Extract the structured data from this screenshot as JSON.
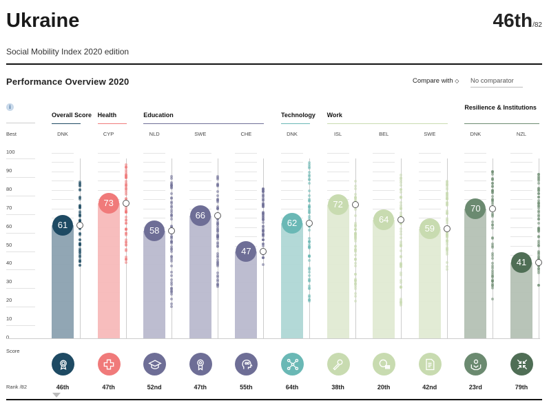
{
  "header": {
    "title": "Ukraine",
    "rank": "46th",
    "rank_of": "/82",
    "subtitle": "Social Mobility Index 2020 edition"
  },
  "section": {
    "title": "Performance Overview 2020",
    "compare_label": "Compare with",
    "compare_icon": "diamond-icon",
    "compare_value": "No comparator"
  },
  "axis": {
    "best_label": "Best",
    "ticks": [
      "100",
      "90",
      "80",
      "70",
      "60",
      "50",
      "40",
      "30",
      "20",
      "10",
      "0"
    ],
    "score_label": "Score",
    "rank_label": "Rank /82"
  },
  "groups": [
    {
      "label": "Overall Score",
      "cols": [
        0
      ],
      "color": "#1e4a63"
    },
    {
      "label": "Health",
      "cols": [
        1
      ],
      "color": "#f07a7a"
    },
    {
      "label": "Education",
      "cols": [
        2,
        3,
        4
      ],
      "color": "#6e6e96"
    },
    {
      "label": "Technology",
      "cols": [
        5
      ],
      "color": "#6ab8b5"
    },
    {
      "label": "Work",
      "cols": [
        6,
        7,
        8
      ],
      "color": "#c8dbb0"
    },
    {
      "label": "Resilience & Institutions",
      "cols": [
        9,
        10
      ],
      "color": "#6b8a70"
    }
  ],
  "columns": [
    {
      "best": "DNK",
      "score": 61,
      "rank": "46th",
      "icon": "award-icon",
      "bubble": "#1e4a63",
      "bar": "#8ba1b0",
      "dot": "#1e4a63",
      "range": [
        35,
        85
      ]
    },
    {
      "best": "CYP",
      "score": 73,
      "rank": "47th",
      "icon": "health-cross-icon",
      "bubble": "#f07a7a",
      "bar": "#f7b9b9",
      "dot": "#f07a7a",
      "range": [
        40,
        94
      ]
    },
    {
      "best": "NLD",
      "score": 58,
      "rank": "52nd",
      "icon": "graduation-cap-icon",
      "bubble": "#6e6e96",
      "bar": "#b9b9cd",
      "dot": "#6e6e96",
      "range": [
        17,
        88
      ]
    },
    {
      "best": "SWE",
      "score": 66,
      "rank": "47th",
      "icon": "medal-icon",
      "bubble": "#6e6e96",
      "bar": "#b9b9cd",
      "dot": "#6e6e96",
      "range": [
        25,
        88
      ]
    },
    {
      "best": "CHE",
      "score": 47,
      "rank": "55th",
      "icon": "head-icon",
      "bubble": "#6e6e96",
      "bar": "#b9b9cd",
      "dot": "#6e6e96",
      "range": [
        37,
        82
      ]
    },
    {
      "best": "DNK",
      "score": 62,
      "rank": "64th",
      "icon": "network-icon",
      "bubble": "#6ab8b5",
      "bar": "#afd7d5",
      "dot": "#6ab8b5",
      "range": [
        20,
        95
      ]
    },
    {
      "best": "ISL",
      "score": 72,
      "rank": "38th",
      "icon": "wrench-icon",
      "bubble": "#c8dbb0",
      "bar": "#e0ead3",
      "dot": "#c8dbb0",
      "range": [
        20,
        88
      ]
    },
    {
      "best": "BEL",
      "score": 64,
      "rank": "20th",
      "icon": "coins-icon",
      "bubble": "#c8dbb0",
      "bar": "#e0ead3",
      "dot": "#c8dbb0",
      "range": [
        17,
        88
      ]
    },
    {
      "best": "SWE",
      "score": 59,
      "rank": "42nd",
      "icon": "document-icon",
      "bubble": "#c8dbb0",
      "bar": "#e0ead3",
      "dot": "#c8dbb0",
      "range": [
        37,
        85
      ]
    },
    {
      "best": "DNK",
      "score": 70,
      "rank": "23rd",
      "icon": "hands-icon",
      "bubble": "#6b8a70",
      "bar": "#b4c1b4",
      "dot": "#6b8a70",
      "range": [
        20,
        91
      ]
    },
    {
      "best": "NZL",
      "score": 41,
      "rank": "79th",
      "icon": "arrows-in-icon",
      "bubble": "#4f6e55",
      "bar": "#b4c1b4",
      "dot": "#6b8a70",
      "range": [
        28,
        90
      ]
    }
  ]
}
